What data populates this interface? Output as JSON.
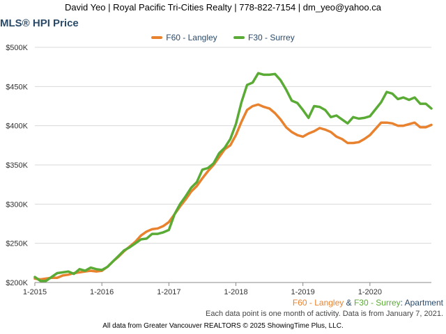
{
  "header": {
    "contact": "David Yeo | Royal Pacific Tri-Cities Realty | 778-822-7154 | dm_yeo@yahoo.ca"
  },
  "footer": {
    "subtitle_series1": "F60 - Langley",
    "subtitle_amp": " & ",
    "subtitle_series2": "F30 - Surrey",
    "subtitle_type": ": Apartment",
    "note": "Each data point is one month of activity. Data is from January 7, 2021.",
    "copyright": "All data from Greater Vancouver REALTORS © 2025 ShowingTime Plus, LLC."
  },
  "colors": {
    "langley": "#e8822f",
    "surrey": "#5aab35",
    "grid": "#d8d8d8",
    "axis": "#888888"
  },
  "chart_data": {
    "type": "line",
    "title": "MLS® HPI Price",
    "xlabel": "",
    "ylabel": "",
    "ylim": [
      200000,
      500000
    ],
    "yticks": [
      200000,
      250000,
      300000,
      350000,
      400000,
      450000,
      500000
    ],
    "ytick_labels": [
      "$200K",
      "$250K",
      "$300K",
      "$350K",
      "$400K",
      "$450K",
      "$500K"
    ],
    "xticks": [
      0,
      12,
      24,
      36,
      48,
      60
    ],
    "xtick_labels": [
      "1-2015",
      "1-2016",
      "1-2017",
      "1-2018",
      "1-2019",
      "1-2020"
    ],
    "xlim": [
      0,
      71
    ],
    "grid": true,
    "legend": "top-center",
    "series": [
      {
        "name": "F60 - Langley",
        "color": "#e8822f",
        "values": [
          205000,
          204000,
          205000,
          206000,
          206000,
          209000,
          210000,
          212000,
          213000,
          214000,
          215000,
          214000,
          215000,
          220000,
          227000,
          233000,
          240000,
          246000,
          252000,
          260000,
          265000,
          268000,
          269000,
          272000,
          277000,
          287000,
          297000,
          306000,
          316000,
          323000,
          333000,
          342000,
          350000,
          360000,
          370000,
          375000,
          388000,
          405000,
          420000,
          425000,
          427000,
          424000,
          422000,
          416000,
          408000,
          398000,
          392000,
          388000,
          386000,
          390000,
          393000,
          397000,
          395000,
          392000,
          386000,
          383000,
          378000,
          378000,
          379000,
          383000,
          388000,
          396000,
          404000,
          404000,
          403000,
          400000,
          400000,
          402000,
          404000,
          398000,
          398000,
          401000
        ]
      },
      {
        "name": "F30 - Surrey",
        "color": "#5aab35",
        "values": [
          207000,
          202000,
          202000,
          207000,
          212000,
          213000,
          214000,
          211000,
          217000,
          215000,
          219000,
          217000,
          216000,
          220000,
          227000,
          234000,
          241000,
          245000,
          250000,
          255000,
          256000,
          262000,
          262000,
          264000,
          267000,
          287000,
          300000,
          310000,
          321000,
          328000,
          344000,
          346000,
          352000,
          365000,
          372000,
          383000,
          402000,
          430000,
          452000,
          455000,
          467000,
          465000,
          465000,
          466000,
          458000,
          446000,
          432000,
          429000,
          420000,
          410000,
          425000,
          424000,
          420000,
          411000,
          413000,
          408000,
          403000,
          411000,
          409000,
          410000,
          412000,
          421000,
          430000,
          443000,
          441000,
          434000,
          436000,
          433000,
          436000,
          428000,
          428000,
          422000
        ]
      }
    ]
  }
}
